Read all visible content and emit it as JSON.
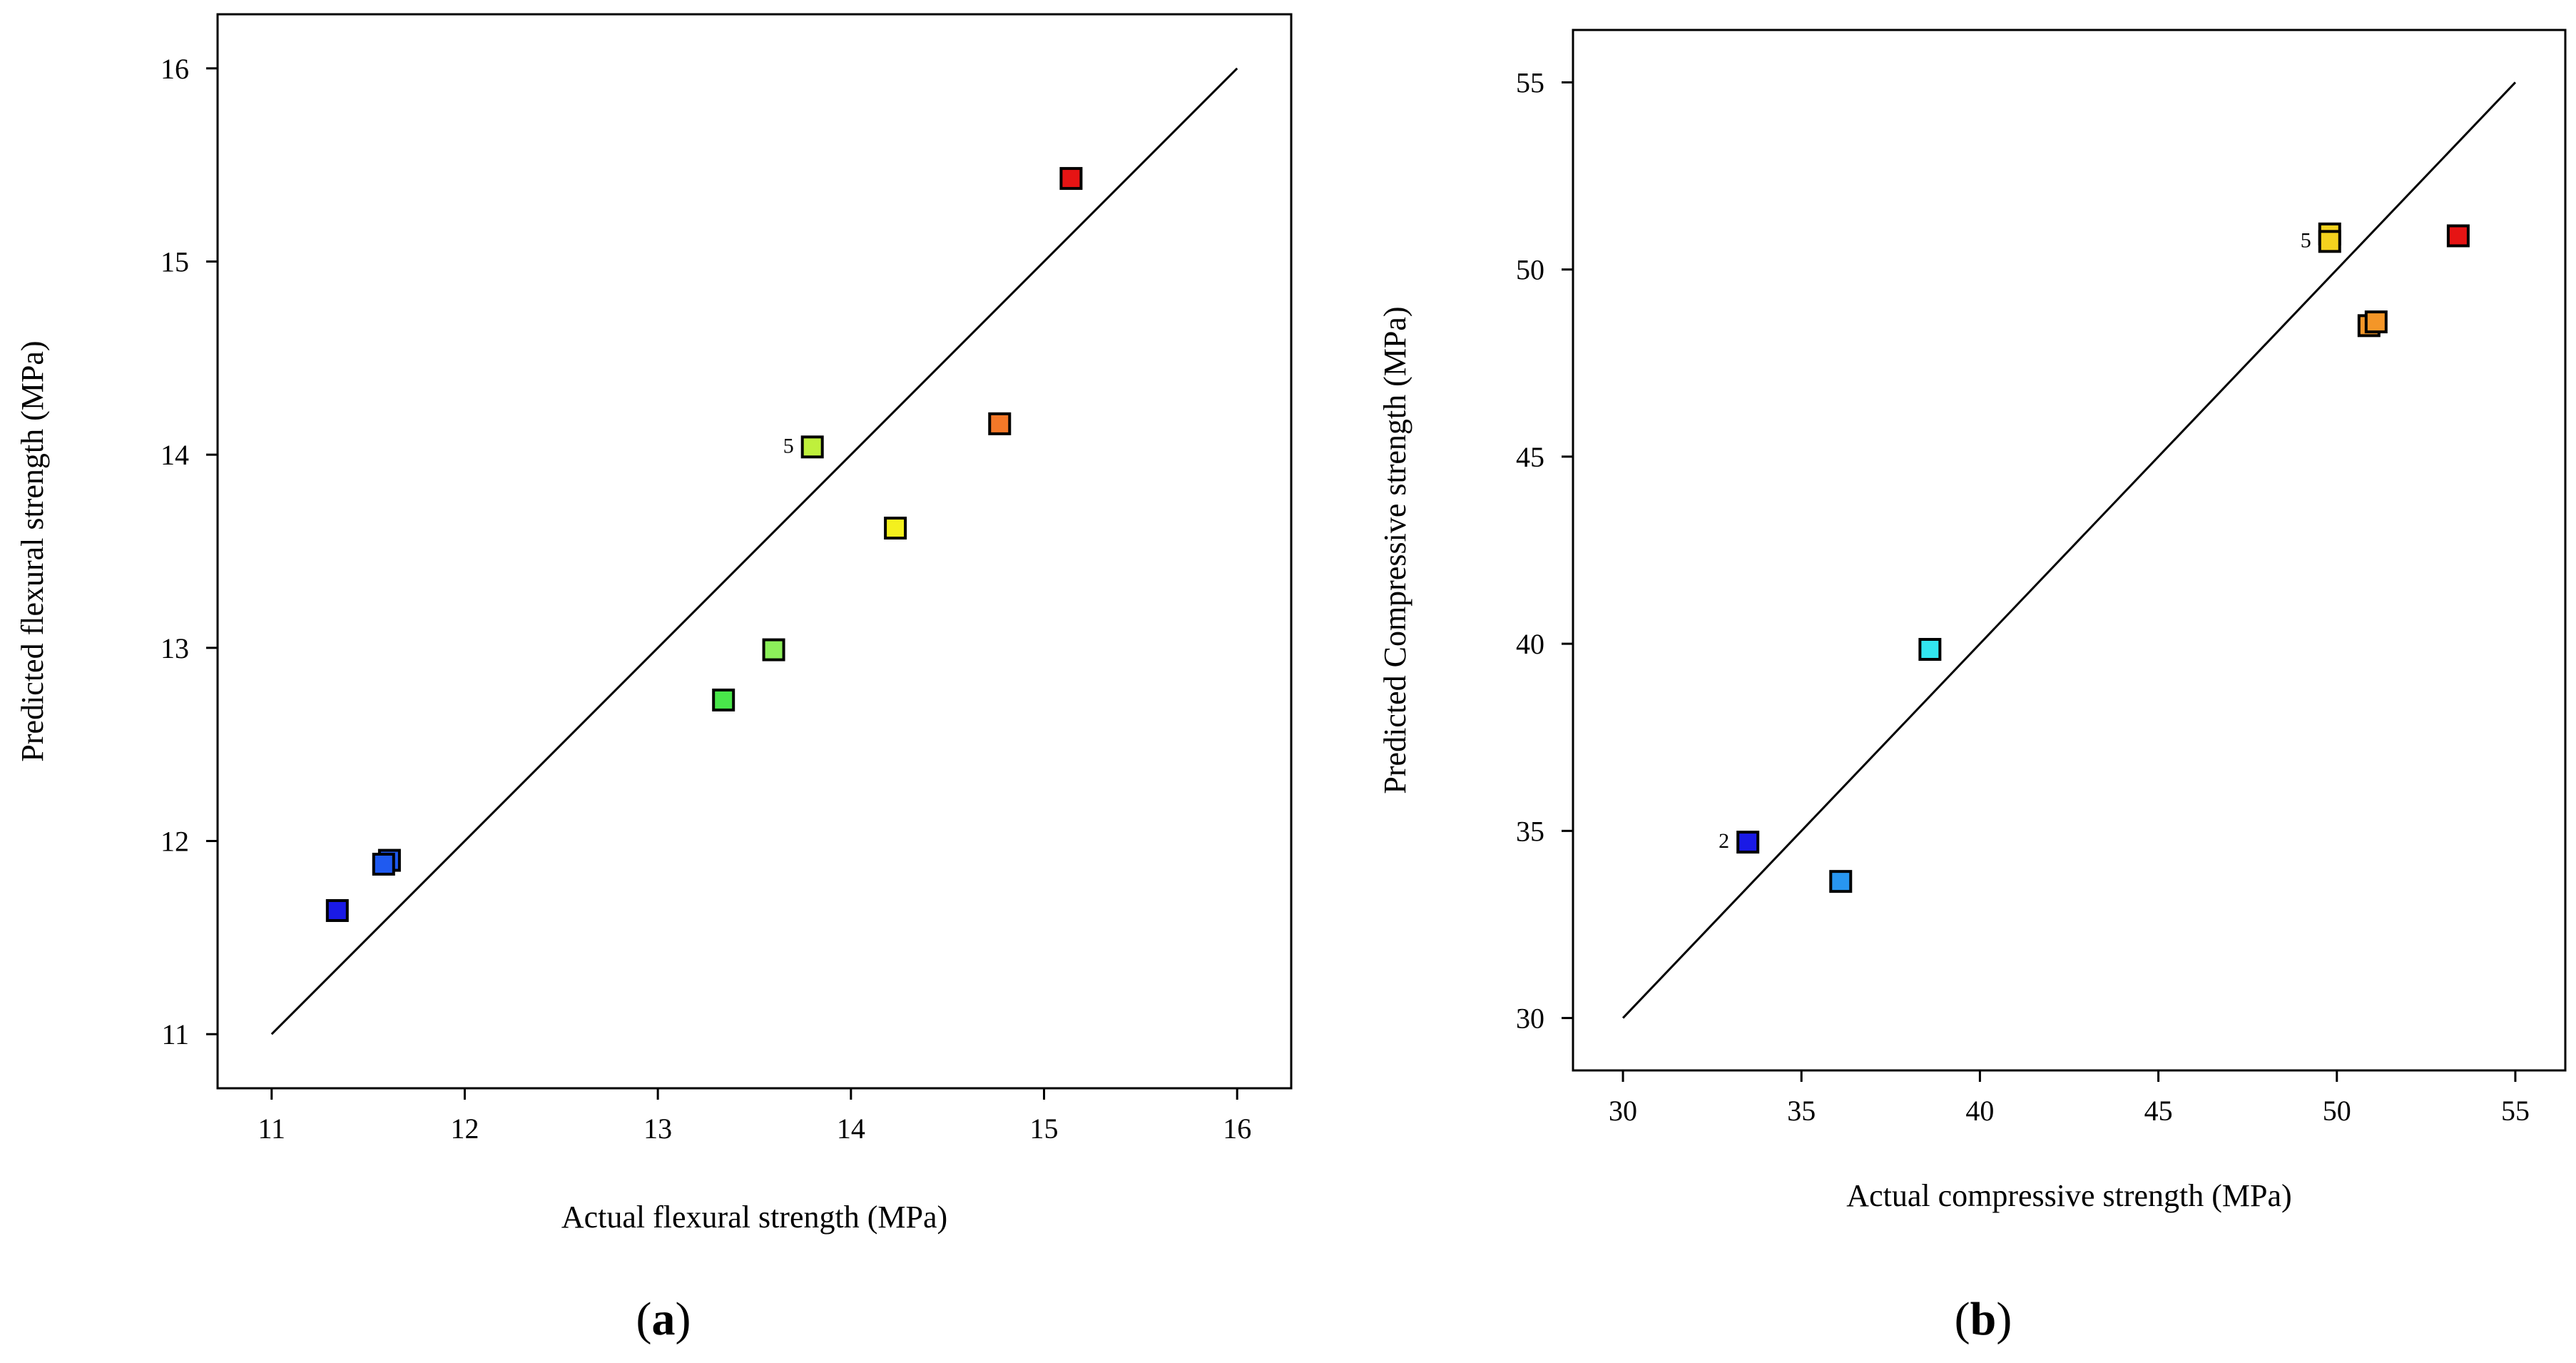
{
  "chart_data": [
    {
      "type": "scatter",
      "panel_label": "(a)",
      "panel_letter": "a",
      "xlabel": "Actual flexural strength (MPa)",
      "ylabel": "Predicted flexural strength (MPa)",
      "xlim": [
        10.72,
        16.28
      ],
      "ylim": [
        10.72,
        16.28
      ],
      "xticks": [
        11,
        12,
        13,
        14,
        15,
        16
      ],
      "yticks": [
        11,
        12,
        13,
        14,
        15,
        16
      ],
      "reference_line": {
        "from": [
          11,
          11
        ],
        "to": [
          16,
          16
        ]
      },
      "points": [
        {
          "x": 11.34,
          "y": 11.64,
          "color": "#1a1ae6"
        },
        {
          "x": 11.61,
          "y": 11.9,
          "color": "#1f5af0"
        },
        {
          "x": 11.58,
          "y": 11.88,
          "color": "#1f5af0"
        },
        {
          "x": 13.34,
          "y": 12.73,
          "color": "#49e64a"
        },
        {
          "x": 13.6,
          "y": 12.99,
          "color": "#8cf05a"
        },
        {
          "x": 13.8,
          "y": 14.04,
          "color": "#bff03c",
          "label": "5"
        },
        {
          "x": 14.23,
          "y": 13.62,
          "color": "#f4f01e"
        },
        {
          "x": 14.77,
          "y": 14.16,
          "color": "#f47828"
        },
        {
          "x": 15.14,
          "y": 15.43,
          "color": "#e61414"
        }
      ]
    },
    {
      "type": "scatter",
      "panel_label": "(b)",
      "panel_letter": "b",
      "xlabel": "Actual compressive strength (MPa)",
      "ylabel": "Predicted Compressive strength (MPa)",
      "xlim": [
        28.6,
        56.4
      ],
      "ylim": [
        28.6,
        56.4
      ],
      "xticks": [
        30,
        35,
        40,
        45,
        50,
        55
      ],
      "yticks": [
        30,
        35,
        40,
        45,
        50,
        55
      ],
      "reference_line": {
        "from": [
          30,
          30
        ],
        "to": [
          55,
          55
        ]
      },
      "points": [
        {
          "x": 33.5,
          "y": 34.7,
          "color": "#1a1ae6",
          "label": "2"
        },
        {
          "x": 36.1,
          "y": 33.65,
          "color": "#2896f0"
        },
        {
          "x": 38.6,
          "y": 39.85,
          "color": "#32e6f0"
        },
        {
          "x": 49.8,
          "y": 50.95,
          "color": "#f4d21e"
        },
        {
          "x": 49.8,
          "y": 50.75,
          "color": "#f4d21e",
          "label": "5"
        },
        {
          "x": 50.9,
          "y": 48.5,
          "color": "#f49628"
        },
        {
          "x": 51.1,
          "y": 48.6,
          "color": "#f49628"
        },
        {
          "x": 53.4,
          "y": 50.9,
          "color": "#e61414"
        }
      ]
    }
  ]
}
